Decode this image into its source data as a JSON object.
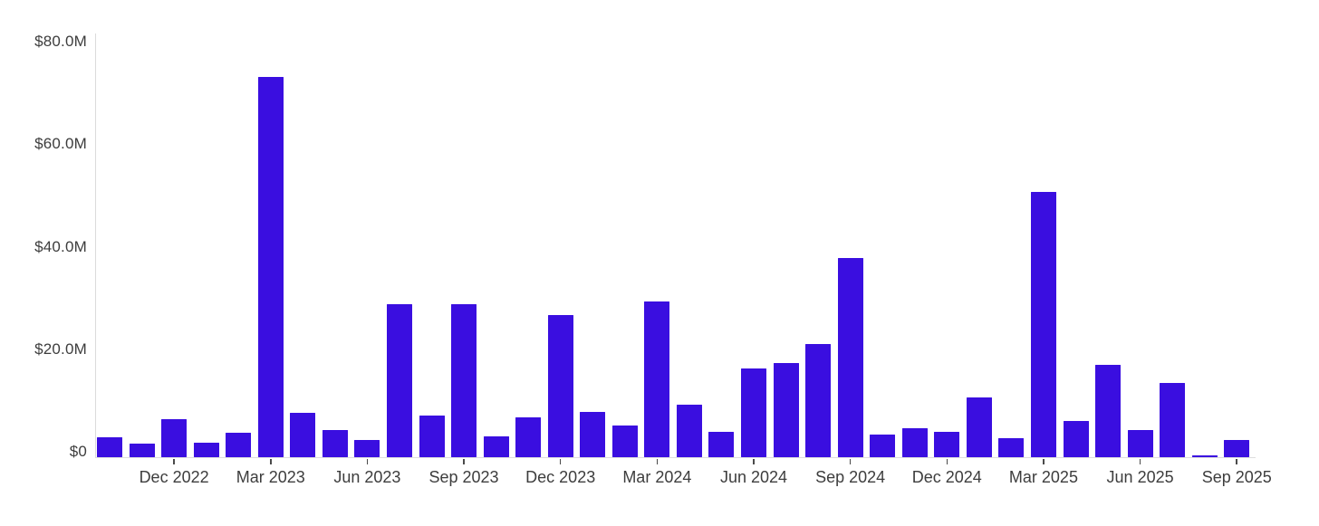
{
  "chart_data": {
    "type": "bar",
    "categories": [
      "Oct 2022",
      "Nov 2022",
      "Dec 2022",
      "Jan 2023",
      "Feb 2023",
      "Mar 2023",
      "Apr 2023",
      "May 2023",
      "Jun 2023",
      "Jul 2023",
      "Aug 2023",
      "Sep 2023",
      "Oct 2023",
      "Nov 2023",
      "Dec 2023",
      "Jan 2024",
      "Feb 2024",
      "Mar 2024",
      "Apr 2024",
      "May 2024",
      "Jun 2024",
      "Jul 2024",
      "Aug 2024",
      "Sep 2024",
      "Oct 2024",
      "Nov 2024",
      "Dec 2024",
      "Jan 2025",
      "Feb 2025",
      "Mar 2025",
      "Apr 2025",
      "May 2025",
      "Jun 2025",
      "Jul 2025",
      "Aug 2025",
      "Sep 2025"
    ],
    "values": [
      3.9,
      2.6,
      7.4,
      2.8,
      4.7,
      74.2,
      8.7,
      5.3,
      3.4,
      29.9,
      8.1,
      29.8,
      4.0,
      7.8,
      27.7,
      8.9,
      6.2,
      30.4,
      10.2,
      5.0,
      17.3,
      18.3,
      22.0,
      38.9,
      4.5,
      5.6,
      4.9,
      11.6,
      3.7,
      51.7,
      7.0,
      18.0,
      5.3,
      14.4,
      0.4,
      3.3
    ],
    "value_unit": "USD millions",
    "ylim": [
      0,
      80
    ],
    "grid": "off",
    "legend": "none",
    "y_axis": {
      "ticks": [
        {
          "value": 0,
          "label": "$0"
        },
        {
          "value": 20,
          "label": "$20.0M"
        },
        {
          "value": 40,
          "label": "$40.0M"
        },
        {
          "value": 60,
          "label": "$60.0M"
        },
        {
          "value": 80,
          "label": "$80.0M"
        }
      ]
    },
    "x_axis": {
      "ticks": [
        {
          "index": 2,
          "label": "Dec 2022"
        },
        {
          "index": 5,
          "label": "Mar 2023"
        },
        {
          "index": 8,
          "label": "Jun 2023"
        },
        {
          "index": 11,
          "label": "Sep 2023"
        },
        {
          "index": 14,
          "label": "Dec 2023"
        },
        {
          "index": 17,
          "label": "Mar 2024"
        },
        {
          "index": 20,
          "label": "Jun 2024"
        },
        {
          "index": 23,
          "label": "Sep 2024"
        },
        {
          "index": 26,
          "label": "Dec 2024"
        },
        {
          "index": 29,
          "label": "Mar 2025"
        },
        {
          "index": 32,
          "label": "Jun 2025"
        },
        {
          "index": 35,
          "label": "Sep 2025"
        }
      ]
    },
    "colors": {
      "bar": "#3A0EE0",
      "y_axis_line": "#DBDBDB",
      "x_axis_line": "#DDDDDD",
      "tick_mark": "#4A4A4A",
      "label_text": "#3D3D3D",
      "background": "#FFFFFF"
    }
  }
}
